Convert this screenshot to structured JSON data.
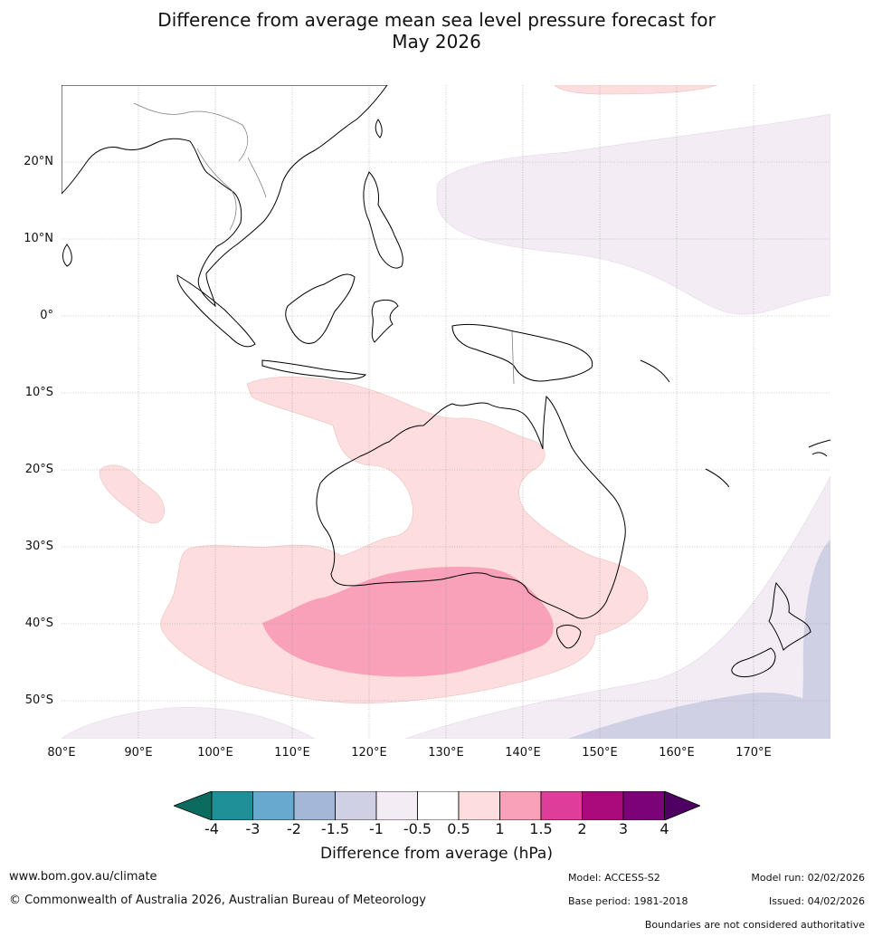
{
  "title": {
    "line1": "Difference from average mean sea level pressure forecast for",
    "line2": "May 2026"
  },
  "map": {
    "lat_labels": [
      "20°N",
      "10°N",
      "0°",
      "10°S",
      "20°S",
      "30°S",
      "40°S",
      "50°S"
    ],
    "lat_values": [
      20,
      10,
      0,
      -10,
      -20,
      -30,
      -40,
      -50
    ],
    "lon_labels": [
      "80°E",
      "90°E",
      "100°E",
      "110°E",
      "120°E",
      "130°E",
      "140°E",
      "150°E",
      "160°E",
      "170°E"
    ],
    "lon_values": [
      80,
      90,
      100,
      110,
      120,
      130,
      140,
      150,
      160,
      170
    ],
    "lat_range": [
      -55,
      30
    ],
    "lon_range": [
      80,
      180
    ]
  },
  "legend": {
    "title": "Difference from average (hPa)",
    "ticks": [
      "-4",
      "-3",
      "-2",
      "-1.5",
      "-1",
      "-0.5",
      "0.5",
      "1",
      "1.5",
      "2",
      "3",
      "4"
    ],
    "colors": [
      "#0a6b5e",
      "#1f8f98",
      "#68a9d0",
      "#a5b7d6",
      "#d0d0e5",
      "#f3ecf4",
      "#ffffff",
      "#fddddd",
      "#f9a1b9",
      "#df3d9a",
      "#ab0a7d",
      "#7b0278",
      "#4e0062"
    ]
  },
  "footer": {
    "website": "www.bom.gov.au/climate",
    "copyright": "© Commonwealth of Australia 2026, Australian Bureau of Meteorology",
    "model": "Model: ACCESS-S2",
    "base_period": "Base period: 1981-2018",
    "model_run": "Model run: 02/02/2026",
    "issued": "Issued: 04/02/2026",
    "disclaimer": "Boundaries are not considered authoritative"
  }
}
